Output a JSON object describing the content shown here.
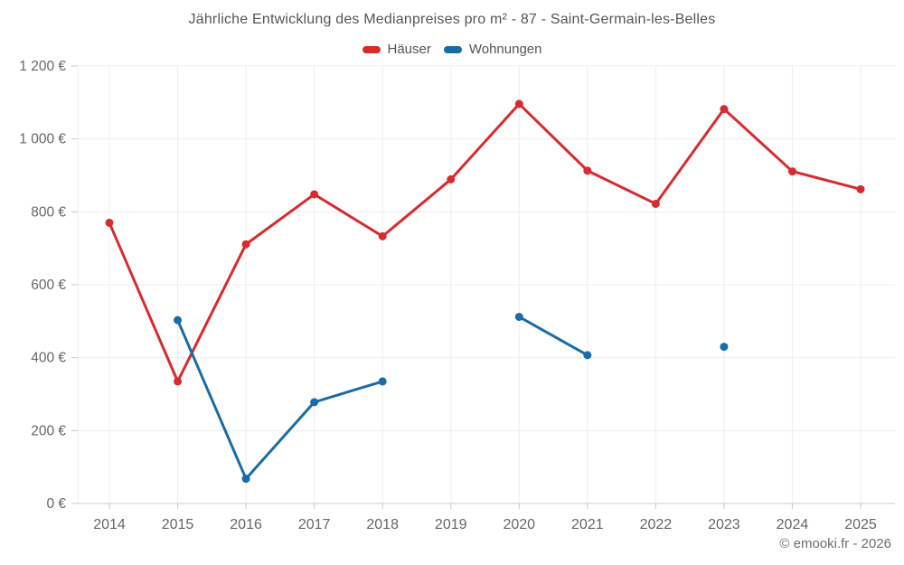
{
  "title": "Jährliche Entwicklung des Medianpreises pro m² - 87 - Saint-Germain-les-Belles",
  "footer": "© emooki.fr - 2026",
  "colors": {
    "haeuser": "#d92b2e",
    "wohnungen": "#1a6ca8",
    "grid": "#ededed",
    "axis": "#c9c9c9",
    "axis_text": "#666666",
    "title_text": "#555555"
  },
  "chart_data": {
    "type": "line",
    "categories": [
      "2014",
      "2015",
      "2016",
      "2017",
      "2018",
      "2019",
      "2020",
      "2021",
      "2022",
      "2023",
      "2024",
      "2025"
    ],
    "series": [
      {
        "name": "Häuser",
        "color": "#d92b2e",
        "values": [
          770,
          335,
          711,
          848,
          733,
          889,
          1096,
          913,
          822,
          1082,
          911,
          862
        ]
      },
      {
        "name": "Wohnungen",
        "color": "#1a6ca8",
        "values": [
          null,
          503,
          68,
          278,
          335,
          null,
          512,
          407,
          null,
          430,
          null,
          null
        ]
      }
    ],
    "ylim": [
      0,
      1200
    ],
    "y_ticks": [
      {
        "value": 0,
        "label": "0 €"
      },
      {
        "value": 200,
        "label": "200 €"
      },
      {
        "value": 400,
        "label": "400 €"
      },
      {
        "value": 600,
        "label": "600 €"
      },
      {
        "value": 800,
        "label": "800 €"
      },
      {
        "value": 1000,
        "label": "1 000 €"
      },
      {
        "value": 1200,
        "label": "1 200 €"
      }
    ],
    "grid": true,
    "legend_position": "top"
  }
}
